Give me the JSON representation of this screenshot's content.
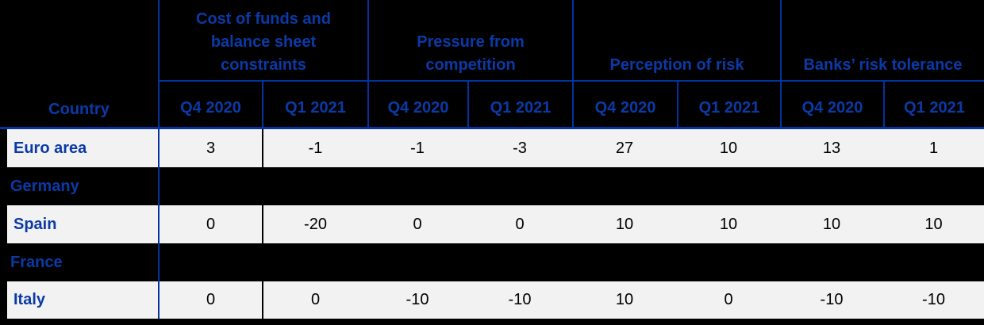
{
  "table": {
    "corner_label": "Country",
    "groups": [
      {
        "label": "Cost of funds and balance sheet constraints"
      },
      {
        "label": "Pressure from competition"
      },
      {
        "label": "Perception of risk"
      },
      {
        "label": "Banks’ risk tolerance"
      }
    ],
    "period_columns": [
      "Q4 2020",
      "Q1 2021",
      "Q4 2020",
      "Q1 2021",
      "Q4 2020",
      "Q1 2021",
      "Q4 2020",
      "Q1 2021"
    ],
    "rows": [
      {
        "country": "Euro area",
        "values": [
          "3",
          "-1",
          "-1",
          "-3",
          "27",
          "10",
          "13",
          "1"
        ]
      },
      {
        "country": "Germany",
        "values": [
          "",
          "",
          "",
          "",
          "",
          "",
          "",
          ""
        ]
      },
      {
        "country": "Spain",
        "values": [
          "0",
          "-20",
          "0",
          "0",
          "10",
          "10",
          "10",
          "10"
        ]
      },
      {
        "country": "France",
        "values": [
          "",
          "",
          "",
          "",
          "",
          "",
          "",
          ""
        ]
      },
      {
        "country": "Italy",
        "values": [
          "0",
          "0",
          "-10",
          "-10",
          "10",
          "0",
          "-10",
          "-10"
        ]
      }
    ]
  },
  "chart_data": {
    "type": "table",
    "row_header": "Country",
    "column_groups": [
      {
        "label": "Cost of funds and balance sheet constraints",
        "columns": [
          "Q4 2020",
          "Q1 2021"
        ]
      },
      {
        "label": "Pressure from competition",
        "columns": [
          "Q4 2020",
          "Q1 2021"
        ]
      },
      {
        "label": "Perception of risk",
        "columns": [
          "Q4 2020",
          "Q1 2021"
        ]
      },
      {
        "label": "Banks’ risk tolerance",
        "columns": [
          "Q4 2020",
          "Q1 2021"
        ]
      }
    ],
    "rows": [
      {
        "country": "Euro area",
        "values": [
          3,
          -1,
          -1,
          -3,
          27,
          10,
          13,
          1
        ]
      },
      {
        "country": "Germany",
        "values": [
          null,
          null,
          null,
          null,
          null,
          null,
          null,
          null
        ]
      },
      {
        "country": "Spain",
        "values": [
          0,
          -20,
          0,
          0,
          10,
          10,
          10,
          10
        ]
      },
      {
        "country": "France",
        "values": [
          null,
          null,
          null,
          null,
          null,
          null,
          null,
          null
        ]
      },
      {
        "country": "Italy",
        "values": [
          0,
          0,
          -10,
          -10,
          10,
          0,
          -10,
          -10
        ]
      }
    ],
    "layout_hints": {
      "empty_rows_rendered_black": [
        "Germany",
        "France"
      ],
      "filled_row_background": "#F2F2F2"
    }
  },
  "colors": {
    "background": "#000000",
    "header_text_blue": "#0B3AA6",
    "grid_line_blue": "#0233A0",
    "row_fill_gray": "#F2F2F2",
    "value_text": "#000000"
  }
}
